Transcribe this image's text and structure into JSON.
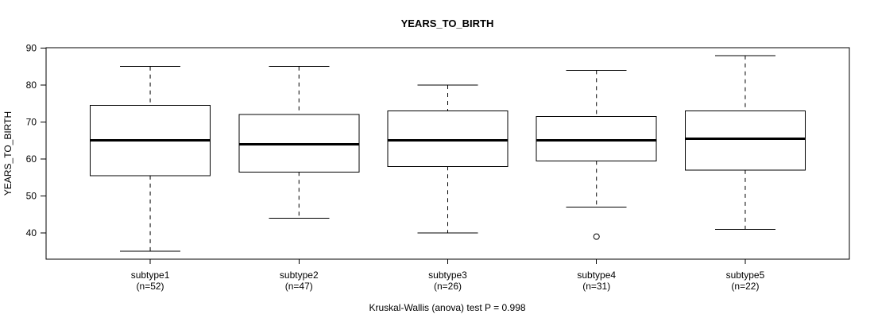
{
  "title": "YEARS_TO_BIRTH",
  "footer": "Kruskal-Wallis (anova) test P = 0.998",
  "chart_data": {
    "type": "boxplot",
    "title": "YEARS_TO_BIRTH",
    "xlabel": "",
    "ylabel": "YEARS_TO_BIRTH",
    "footer": "Kruskal-Wallis (anova) test P = 0.998",
    "ylim": [
      32.9,
      90.1
    ],
    "yticks": [
      40,
      50,
      60,
      70,
      80,
      90
    ],
    "grid": false,
    "legend": "none",
    "categories": [
      "subtype1",
      "subtype2",
      "subtype3",
      "subtype4",
      "subtype5"
    ],
    "category_sublabels": [
      "(n=52)",
      "(n=47)",
      "(n=26)",
      "(n=31)",
      "(n=22)"
    ],
    "sample_sizes": [
      52,
      47,
      26,
      31,
      22
    ],
    "series": [
      {
        "name": "subtype1",
        "n": 52,
        "whisker_low": 35,
        "q1": 55.5,
        "median": 65,
        "q3": 74.5,
        "whisker_high": 85,
        "outliers": []
      },
      {
        "name": "subtype2",
        "n": 47,
        "whisker_low": 44,
        "q1": 56.5,
        "median": 64,
        "q3": 72,
        "whisker_high": 85,
        "outliers": []
      },
      {
        "name": "subtype3",
        "n": 26,
        "whisker_low": 40,
        "q1": 58,
        "median": 65,
        "q3": 73,
        "whisker_high": 80,
        "outliers": []
      },
      {
        "name": "subtype4",
        "n": 31,
        "whisker_low": 47,
        "q1": 59.5,
        "median": 65,
        "q3": 71.5,
        "whisker_high": 84,
        "outliers": [
          39
        ]
      },
      {
        "name": "subtype5",
        "n": 22,
        "whisker_low": 41,
        "q1": 57,
        "median": 65.5,
        "q3": 73,
        "whisker_high": 88,
        "outliers": []
      }
    ],
    "colors": {
      "stroke": "#000000",
      "median": "#000000",
      "box_fill": "#ffffff",
      "background": "#ffffff"
    }
  }
}
